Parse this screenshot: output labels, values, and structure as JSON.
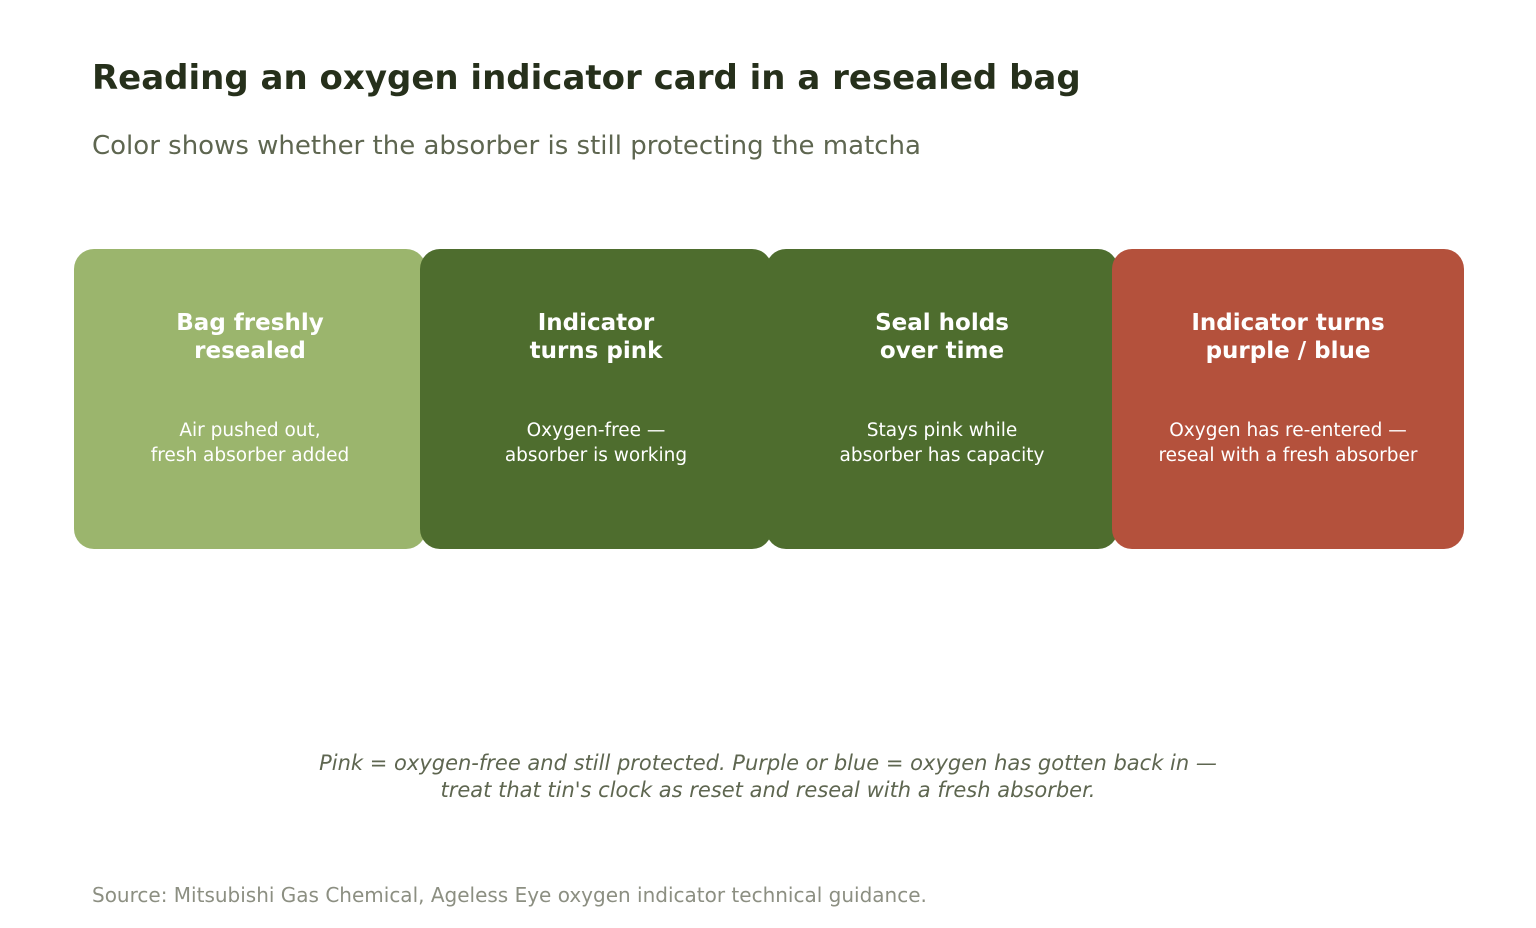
{
  "title": "Reading an oxygen indicator card in a resealed bag",
  "subtitle": "Color shows whether the absorber is still protecting the matcha",
  "steps": [
    {
      "title": "Bag freshly\nresealed",
      "text": "Air pushed out,\nfresh absorber added",
      "color": "#9bb56d"
    },
    {
      "title": "Indicator\nturns pink",
      "text": "Oxygen-free —\nabsorber is working",
      "color": "#4e6d2e"
    },
    {
      "title": "Seal holds\nover time",
      "text": "Stays pink while\nabsorber has capacity",
      "color": "#4e6d2e"
    },
    {
      "title": "Indicator turns\npurple / blue",
      "text": "Oxygen has re-entered —\nreseal with a fresh absorber",
      "color": "#b4513c"
    }
  ],
  "note": "Pink = oxygen-free and still protected. Purple or blue = oxygen has gotten back in —\ntreat that tin's clock as reset and reseal with a fresh absorber.",
  "source": "Source: Mitsubishi Gas Chemical, Ageless Eye oxygen indicator technical guidance."
}
